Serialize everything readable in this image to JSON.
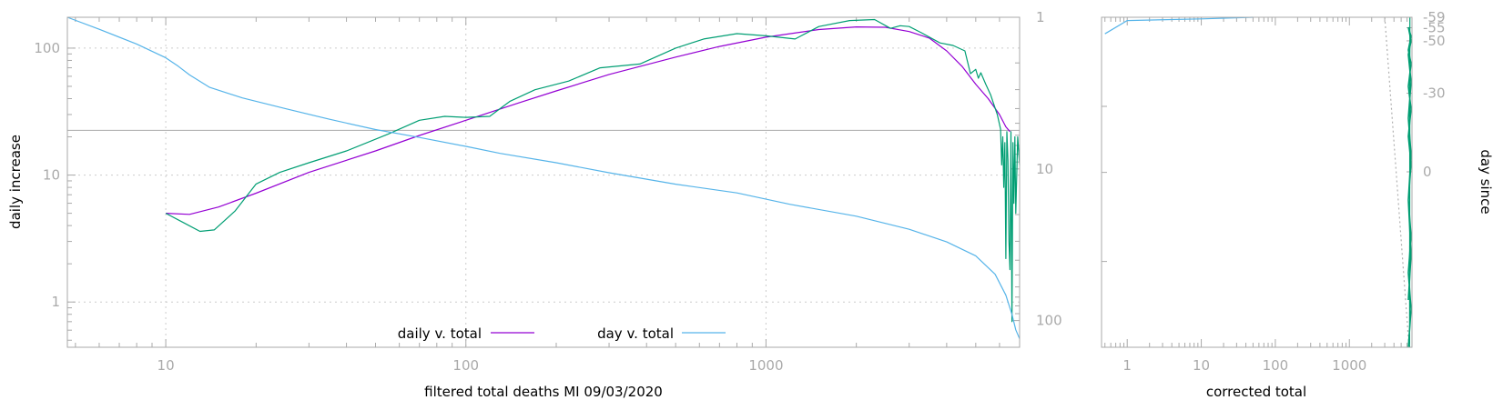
{
  "chart_data": [
    {
      "type": "line",
      "xlabel": "filtered total deaths MI 09/03/2020",
      "ylabel": "daily increase",
      "y2label": "",
      "xscale": "log",
      "yscale": "log",
      "y2scale": "log-reversed",
      "xlim": [
        4.7,
        7000
      ],
      "ylim": [
        0.44,
        175
      ],
      "y2lim": [
        1,
        150
      ],
      "grid": true,
      "legend_position": "bottom-center",
      "x_ticks": [
        "10",
        "100",
        "1000"
      ],
      "y_ticks": [
        "1",
        "10",
        "100"
      ],
      "y2_ticks": [
        "1",
        "10",
        "100"
      ],
      "hline": 22.5,
      "series": [
        {
          "name": "daily v. total",
          "axis": "y",
          "color": "#9400d3",
          "x": [
            10,
            12,
            15,
            20,
            30,
            50,
            70,
            100,
            150,
            200,
            300,
            500,
            700,
            1000,
            1500,
            2000,
            2500,
            3000,
            3500,
            4000,
            4500,
            5000,
            5500,
            6000,
            6300,
            6500
          ],
          "y": [
            5.0,
            4.9,
            5.6,
            7.2,
            10.5,
            15.5,
            20.5,
            27,
            37,
            46,
            62,
            85,
            103,
            122,
            140,
            147,
            146,
            135,
            120,
            95,
            72,
            52,
            40,
            30,
            24,
            22
          ]
        },
        {
          "name": "",
          "axis": "y",
          "color": "#009e73",
          "x": [
            10,
            11.5,
            13,
            14.5,
            17,
            20,
            24,
            30,
            40,
            55,
            70,
            85,
            100,
            120,
            140,
            170,
            220,
            280,
            380,
            500,
            620,
            800,
            1000,
            1250,
            1500,
            1900,
            2300,
            2600,
            2800,
            3000,
            3300,
            3800,
            4200,
            4600,
            4800,
            5000,
            5100,
            5200,
            5400,
            5600,
            5700,
            5900,
            6050,
            6100,
            6150,
            6200,
            6250,
            6300,
            6350,
            6400,
            6450,
            6500,
            6550,
            6600,
            6650,
            6700,
            6750,
            6800,
            6900,
            7000
          ],
          "y": [
            5.0,
            4.2,
            3.6,
            3.7,
            5.2,
            8.5,
            10.5,
            12.5,
            15.5,
            21,
            27,
            29,
            28.5,
            29,
            38,
            47,
            55,
            70,
            75,
            100,
            118,
            130,
            125,
            118,
            148,
            165,
            168,
            143,
            150,
            148,
            132,
            110,
            105,
            95,
            63,
            68,
            58,
            64,
            52,
            43,
            38,
            30,
            23,
            12,
            20,
            8,
            18,
            2.2,
            22,
            13,
            3,
            1.8,
            22,
            0.7,
            18,
            6,
            20,
            5,
            20,
            12
          ]
        },
        {
          "name": "day v. total",
          "axis": "y2",
          "color": "#56b4e9",
          "x": [
            4.7,
            6,
            8,
            10,
            11,
            12,
            14,
            18,
            25,
            35,
            50,
            70,
            100,
            130,
            200,
            300,
            500,
            800,
            1200,
            2000,
            3000,
            4000,
            5000,
            5800,
            6300,
            6600,
            6800,
            7000
          ],
          "y": [
            1.0,
            1.2,
            1.5,
            1.85,
            2.1,
            2.4,
            2.9,
            3.4,
            4.0,
            4.7,
            5.5,
            6.2,
            7.1,
            7.9,
            9.1,
            10.6,
            12.6,
            14.4,
            17.1,
            20.5,
            25.0,
            30.3,
            37.4,
            49.5,
            68.0,
            91,
            115,
            132
          ]
        }
      ]
    },
    {
      "type": "line",
      "xlabel": "corrected total",
      "ylabel": "",
      "y2label": "day since",
      "xscale": "log",
      "x_ticks": [
        "1",
        "10",
        "100",
        "1000"
      ],
      "y2_ticks": [
        "-59",
        "-55",
        "-50",
        "-30",
        "0"
      ],
      "y2_values": [
        -59,
        -55,
        -50,
        -30,
        0
      ],
      "grid": false,
      "series": [
        {
          "name": "",
          "color": "#56b4e9",
          "x": [
            0.5,
            1,
            10,
            50
          ],
          "y": [
            0.95,
            0.99,
            0.995,
            1.0
          ]
        },
        {
          "name": "",
          "color": "#009e73",
          "x": [
            6500,
            6550
          ],
          "y": [
            0.0,
            1.0
          ]
        },
        {
          "name": "",
          "color": "#b0b0b0",
          "x": [
            3000,
            6400
          ],
          "y": [
            1.0,
            0.0
          ]
        }
      ]
    }
  ]
}
